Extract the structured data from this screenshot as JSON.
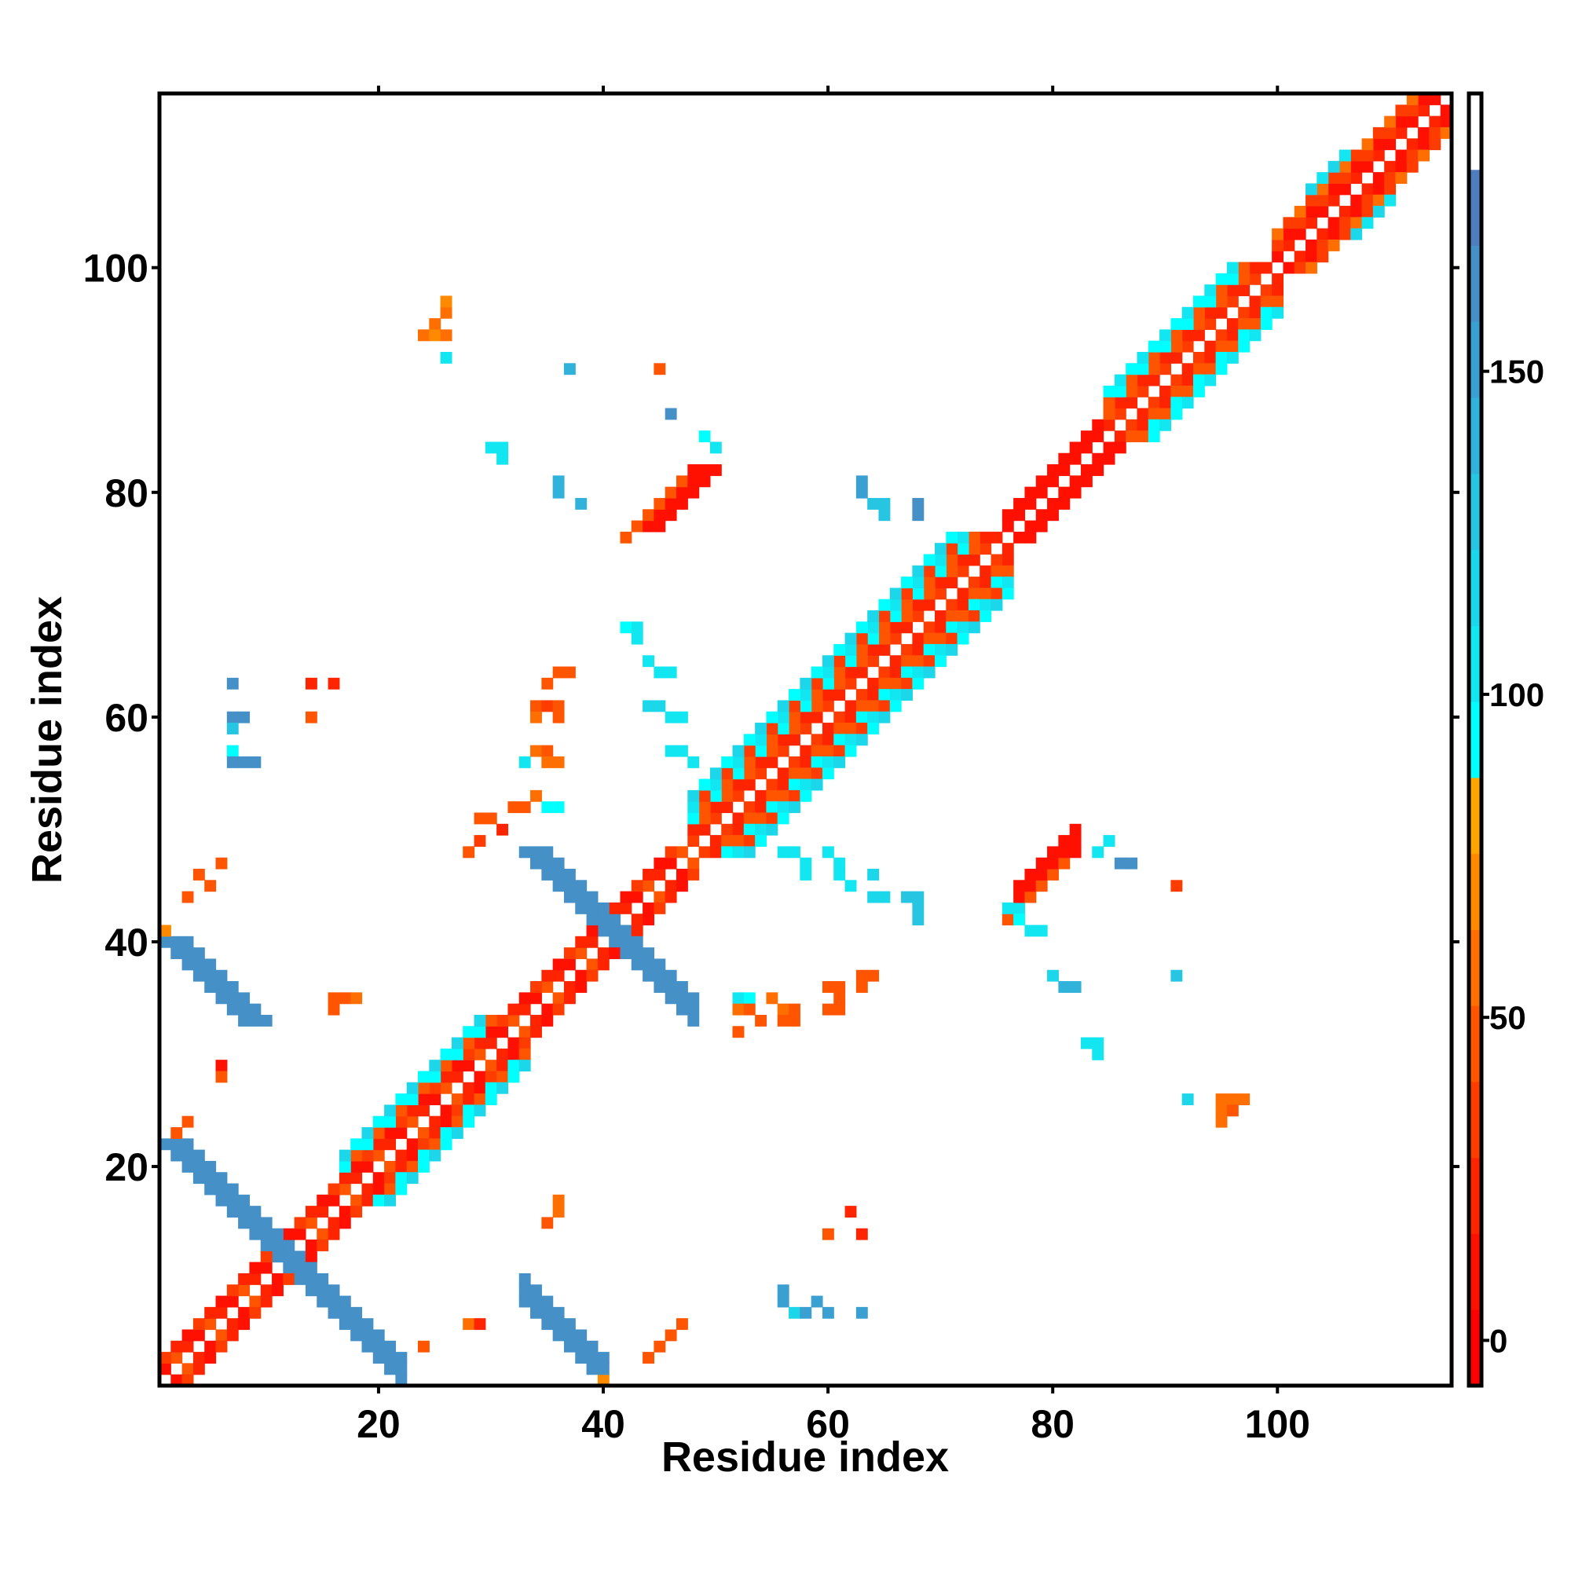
{
  "chart_data": {
    "type": "heatmap",
    "title": "",
    "xlabel": "Residue index",
    "ylabel": "Residue index",
    "xlim": [
      0.5,
      115.5
    ],
    "ylim": [
      0.5,
      115.5
    ],
    "xticks": [
      20,
      40,
      60,
      80,
      100
    ],
    "yticks": [
      20,
      40,
      60,
      80,
      100
    ],
    "xtick_labels": [
      "20",
      "40",
      "60",
      "80",
      "100"
    ],
    "ytick_labels": [
      "20",
      "40",
      "60",
      "80",
      "100"
    ],
    "colorbar": {
      "range": [
        -7,
        193
      ],
      "ticks": [
        0,
        50,
        100,
        150
      ],
      "tick_labels": [
        "0",
        "50",
        "100",
        "150"
      ],
      "colors": [
        "#ff0000",
        "#ff1000",
        "#ff2400",
        "#ff3c00",
        "#ff5500",
        "#ff6e00",
        "#ff8a00",
        "#ffa500",
        "#00ffff",
        "#12e6f0",
        "#1cd6ea",
        "#26c6e2",
        "#30b2da",
        "#3aa0d2",
        "#4590c6",
        "#4f7ebe",
        "#ffffff"
      ]
    },
    "symmetric": true,
    "diagonal_bands": [
      {
        "range": [
          1,
          48
        ],
        "offsets": {
          "1": [
            20,
            5,
            50
          ],
          "2": [
            5,
            40,
            20
          ]
        }
      },
      {
        "range": [
          17,
          33
        ],
        "offsets": {
          "3": [
            50,
            90
          ],
          "4": [
            90,
            120
          ]
        }
      },
      {
        "range": [
          48,
          76
        ],
        "offsets": {
          "1": [
            40,
            25
          ],
          "2": [
            25,
            50
          ],
          "3": [
            90,
            50
          ],
          "4": [
            100,
            40
          ],
          "5": [
            120,
            95
          ]
        }
      },
      {
        "range": [
          76,
          86
        ],
        "offsets": {
          "1": [
            5
          ],
          "2": [
            10,
            5
          ]
        }
      },
      {
        "range": [
          85,
          100
        ],
        "offsets": {
          "1": [
            40,
            20
          ],
          "2": [
            25,
            50
          ],
          "3": [
            90,
            50
          ],
          "4": [
            110,
            95
          ]
        }
      },
      {
        "range": [
          100,
          115
        ],
        "offsets": {
          "1": [
            5,
            25
          ],
          "2": [
            40,
            5
          ],
          "3": [
            60,
            30
          ]
        }
      },
      {
        "range": [
          103,
          110
        ],
        "offsets": {
          "4": [
            100,
            120
          ]
        }
      }
    ],
    "antiparallel_strips": [
      {
        "start": [
          1,
          22
        ],
        "length": 11,
        "width": 3,
        "value": 165
      },
      {
        "start": [
          1,
          40
        ],
        "length": 8,
        "width": 3,
        "value": 160
      },
      {
        "start": [
          33,
          48
        ],
        "length": 9,
        "width": 3,
        "value": 165
      }
    ],
    "parallel_strips": [
      {
        "start": [
          43,
          77
        ],
        "length": 6,
        "width": 3,
        "value": 5
      },
      {
        "start": [
          42,
          76
        ],
        "length": 6,
        "width": 1,
        "value": 50
      }
    ],
    "cells": [
      [
        25,
        95,
        60
      ],
      [
        26,
        96,
        60
      ],
      [
        26,
        97,
        70
      ],
      [
        24,
        94,
        60
      ],
      [
        25,
        94,
        70
      ],
      [
        26,
        94,
        60
      ],
      [
        26,
        92,
        100
      ],
      [
        37,
        91,
        140
      ],
      [
        45,
        91,
        45
      ],
      [
        46,
        87,
        160
      ],
      [
        30,
        84,
        100
      ],
      [
        31,
        84,
        100
      ],
      [
        31,
        83,
        100
      ],
      [
        36,
        81,
        140
      ],
      [
        36,
        80,
        140
      ],
      [
        38,
        79,
        140
      ],
      [
        50,
        84,
        100
      ],
      [
        49,
        85,
        95
      ],
      [
        63,
        80,
        150
      ],
      [
        63,
        81,
        150
      ],
      [
        64,
        79,
        130
      ],
      [
        65,
        79,
        130
      ],
      [
        65,
        78,
        130
      ],
      [
        68,
        79,
        160
      ],
      [
        68,
        78,
        160
      ],
      [
        42,
        68,
        95
      ],
      [
        43,
        68,
        110
      ],
      [
        43,
        67,
        110
      ],
      [
        44,
        65,
        110
      ],
      [
        45,
        64,
        110
      ],
      [
        46,
        64,
        110
      ],
      [
        44,
        61,
        120
      ],
      [
        45,
        61,
        120
      ],
      [
        46,
        60,
        110
      ],
      [
        47,
        60,
        110
      ],
      [
        46,
        57,
        110
      ],
      [
        47,
        57,
        110
      ],
      [
        48,
        56,
        110
      ],
      [
        7,
        63,
        160
      ],
      [
        7,
        60,
        160
      ],
      [
        8,
        60,
        160
      ],
      [
        7,
        59,
        130
      ],
      [
        7,
        57,
        95
      ],
      [
        7,
        56,
        160
      ],
      [
        8,
        56,
        160
      ],
      [
        9,
        56,
        160
      ],
      [
        14,
        63,
        20
      ],
      [
        16,
        63,
        20
      ],
      [
        14,
        60,
        45
      ],
      [
        36,
        64,
        50
      ],
      [
        37,
        64,
        50
      ],
      [
        35,
        63,
        50
      ],
      [
        34,
        61,
        50
      ],
      [
        35,
        61,
        40
      ],
      [
        36,
        61,
        50
      ],
      [
        34,
        60,
        60
      ],
      [
        36,
        60,
        50
      ],
      [
        34,
        57,
        55
      ],
      [
        35,
        57,
        50
      ],
      [
        35,
        56,
        55
      ],
      [
        36,
        56,
        55
      ],
      [
        33,
        56,
        110
      ],
      [
        34,
        53,
        55
      ],
      [
        32,
        52,
        50
      ],
      [
        33,
        52,
        45
      ],
      [
        35,
        52,
        95
      ],
      [
        36,
        52,
        95
      ],
      [
        29,
        51,
        50
      ],
      [
        30,
        51,
        45
      ],
      [
        31,
        50,
        20
      ],
      [
        29,
        49,
        40
      ],
      [
        28,
        48,
        50
      ],
      [
        4,
        46,
        45
      ],
      [
        5,
        45,
        45
      ],
      [
        6,
        47,
        45
      ],
      [
        3,
        44,
        45
      ],
      [
        1,
        41,
        70
      ],
      [
        16,
        35,
        50
      ],
      [
        17,
        35,
        50
      ],
      [
        18,
        35,
        60
      ],
      [
        16,
        34,
        45
      ],
      [
        6,
        29,
        10
      ],
      [
        6,
        28,
        50
      ],
      [
        3,
        24,
        45
      ],
      [
        2,
        23,
        50
      ],
      [
        36,
        17,
        60
      ],
      [
        36,
        16,
        60
      ],
      [
        35,
        15,
        50
      ],
      [
        62,
        16,
        20
      ],
      [
        60,
        14,
        45
      ],
      [
        63,
        14,
        20
      ],
      [
        56,
        9,
        150
      ],
      [
        56,
        8,
        150
      ],
      [
        57,
        7,
        120
      ],
      [
        58,
        7,
        150
      ],
      [
        59,
        8,
        150
      ],
      [
        60,
        7,
        150
      ],
      [
        63,
        7,
        150
      ],
      [
        28,
        6,
        55
      ],
      [
        29,
        6,
        20
      ],
      [
        47,
        6,
        45
      ],
      [
        46,
        5,
        45
      ],
      [
        45,
        4,
        45
      ],
      [
        44,
        3,
        45
      ],
      [
        24,
        4,
        45
      ],
      [
        40,
        1,
        70
      ],
      [
        80,
        37,
        120
      ],
      [
        81,
        36,
        140
      ],
      [
        82,
        36,
        140
      ],
      [
        91,
        37,
        130
      ],
      [
        83,
        31,
        100
      ],
      [
        84,
        31,
        110
      ],
      [
        84,
        30,
        100
      ],
      [
        92,
        26,
        120
      ],
      [
        95,
        26,
        60
      ],
      [
        96,
        26,
        60
      ],
      [
        97,
        26,
        60
      ],
      [
        95,
        25,
        60
      ],
      [
        96,
        25,
        45
      ],
      [
        95,
        24,
        60
      ],
      [
        91,
        45,
        35
      ],
      [
        86,
        47,
        160
      ],
      [
        87,
        47,
        160
      ],
      [
        84,
        48,
        110
      ],
      [
        85,
        49,
        100
      ],
      [
        56,
        34,
        55
      ],
      [
        57,
        34,
        50
      ],
      [
        56,
        33,
        50
      ],
      [
        57,
        33,
        45
      ],
      [
        55,
        35,
        60
      ],
      [
        60,
        36,
        50
      ],
      [
        61,
        36,
        45
      ],
      [
        61,
        35,
        50
      ],
      [
        60,
        34,
        45
      ],
      [
        61,
        34,
        45
      ],
      [
        63,
        37,
        50
      ],
      [
        64,
        37,
        45
      ],
      [
        63,
        36,
        50
      ],
      [
        52,
        35,
        100
      ],
      [
        53,
        35,
        95
      ],
      [
        52,
        34,
        55
      ],
      [
        53,
        34,
        50
      ],
      [
        54,
        33,
        50
      ],
      [
        52,
        32,
        45
      ],
      [
        56,
        48,
        110
      ],
      [
        57,
        48,
        110
      ],
      [
        58,
        47,
        110
      ],
      [
        58,
        46,
        110
      ],
      [
        60,
        48,
        110
      ],
      [
        61,
        47,
        110
      ],
      [
        61,
        46,
        110
      ],
      [
        62,
        45,
        110
      ],
      [
        64,
        46,
        120
      ],
      [
        64,
        44,
        120
      ],
      [
        65,
        44,
        120
      ],
      [
        67,
        44,
        130
      ],
      [
        68,
        44,
        130
      ],
      [
        68,
        43,
        130
      ],
      [
        68,
        42,
        130
      ],
      [
        76,
        43,
        100
      ],
      [
        77,
        43,
        100
      ],
      [
        77,
        42,
        95
      ],
      [
        78,
        41,
        110
      ],
      [
        79,
        41,
        100
      ]
    ]
  }
}
